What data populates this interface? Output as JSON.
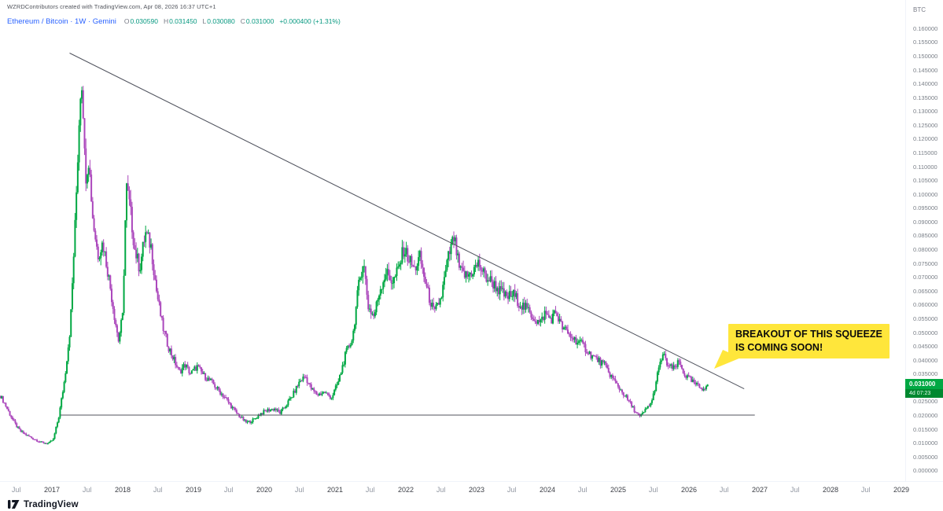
{
  "attribution": "WZRDContributors created with TradingView.com, Apr 08, 2026 16:37 UTC+1",
  "symbol": {
    "title": "Ethereum / Bitcoin · 1W · Gemini",
    "ohlc": [
      {
        "label": "O",
        "value": "0.030590"
      },
      {
        "label": "H",
        "value": "0.031450"
      },
      {
        "label": "L",
        "value": "0.030080"
      },
      {
        "label": "C",
        "value": "0.031000"
      }
    ],
    "change": "+0.000400 (+1.31%)"
  },
  "price_axis": {
    "currency": "BTC",
    "min": -0.005,
    "max": 0.16,
    "step": 0.005,
    "decimals": 6
  },
  "time_axis": {
    "year_start": 2017,
    "year_end": 2029,
    "mid_label": "Jul"
  },
  "price_label": {
    "price": "0.031000",
    "countdown": "4d 07:23"
  },
  "annotation": {
    "line1": "BREAKOUT OF THIS SQUEEZE",
    "line2": "IS COMING SOON!",
    "color": "#ffe63b"
  },
  "footer": {
    "brand": "TradingView"
  },
  "chart_data": {
    "type": "candlestick",
    "title": "Ethereum / Bitcoin (ETH/BTC) weekly candles on Gemini with descending resistance trendline, horizontal support near 0.020, squeeze annotation",
    "x_range": {
      "left": 2016.2667,
      "right": 2029.0444
    },
    "y_range": {
      "top": 0.1702,
      "bottom": -0.0039
    },
    "up_color": "#00a843",
    "down_color": "#ab47bc",
    "countdown_bg": "#00882f",
    "axis_note": "x is decimal year, y is price in BTC",
    "volatility": 0.07,
    "week_step": 0.019179,
    "data_start": 2016.272,
    "data_end": 2026.27,
    "last_close": 0.031,
    "price_path": [
      [
        2016.272,
        0.027
      ],
      [
        2016.33,
        0.0243
      ],
      [
        2016.4,
        0.0206
      ],
      [
        2016.47,
        0.0172
      ],
      [
        2016.55,
        0.0142
      ],
      [
        2016.65,
        0.0126
      ],
      [
        2016.75,
        0.0113
      ],
      [
        2016.85,
        0.0101
      ],
      [
        2016.95,
        0.0097
      ],
      [
        2017.02,
        0.0112
      ],
      [
        2017.1,
        0.0198
      ],
      [
        2017.18,
        0.033
      ],
      [
        2017.26,
        0.052
      ],
      [
        2017.33,
        0.09
      ],
      [
        2017.4,
        0.137
      ],
      [
        2017.43,
        0.142
      ],
      [
        2017.47,
        0.106
      ],
      [
        2017.52,
        0.113
      ],
      [
        2017.58,
        0.0905
      ],
      [
        2017.65,
        0.078
      ],
      [
        2017.72,
        0.0825
      ],
      [
        2017.8,
        0.0705
      ],
      [
        2017.88,
        0.0565
      ],
      [
        2017.94,
        0.047
      ],
      [
        2018.0,
        0.056
      ],
      [
        2018.05,
        0.103
      ],
      [
        2018.1,
        0.0955
      ],
      [
        2018.17,
        0.08
      ],
      [
        2018.24,
        0.073
      ],
      [
        2018.32,
        0.086
      ],
      [
        2018.4,
        0.0812
      ],
      [
        2018.48,
        0.0645
      ],
      [
        2018.56,
        0.0525
      ],
      [
        2018.64,
        0.0452
      ],
      [
        2018.72,
        0.0402
      ],
      [
        2018.8,
        0.0356
      ],
      [
        2018.88,
        0.0382
      ],
      [
        2018.96,
        0.035
      ],
      [
        2019.05,
        0.0376
      ],
      [
        2019.15,
        0.0342
      ],
      [
        2019.25,
        0.0321
      ],
      [
        2019.35,
        0.0291
      ],
      [
        2019.45,
        0.0262
      ],
      [
        2019.55,
        0.0226
      ],
      [
        2019.65,
        0.0196
      ],
      [
        2019.75,
        0.0172
      ],
      [
        2019.85,
        0.0183
      ],
      [
        2019.95,
        0.0206
      ],
      [
        2020.05,
        0.0218
      ],
      [
        2020.15,
        0.0223
      ],
      [
        2020.22,
        0.0206
      ],
      [
        2020.3,
        0.0233
      ],
      [
        2020.4,
        0.0271
      ],
      [
        2020.5,
        0.0322
      ],
      [
        2020.58,
        0.0341
      ],
      [
        2020.66,
        0.0296
      ],
      [
        2020.75,
        0.0273
      ],
      [
        2020.85,
        0.0283
      ],
      [
        2020.95,
        0.0263
      ],
      [
        2021.05,
        0.0322
      ],
      [
        2021.15,
        0.0421
      ],
      [
        2021.25,
        0.0482
      ],
      [
        2021.33,
        0.0662
      ],
      [
        2021.4,
        0.0762
      ],
      [
        2021.47,
        0.0592
      ],
      [
        2021.55,
        0.0556
      ],
      [
        2021.63,
        0.0652
      ],
      [
        2021.72,
        0.0716
      ],
      [
        2021.82,
        0.0682
      ],
      [
        2021.9,
        0.0731
      ],
      [
        2021.97,
        0.0802
      ],
      [
        2022.05,
        0.0762
      ],
      [
        2022.12,
        0.0726
      ],
      [
        2022.2,
        0.0771
      ],
      [
        2022.3,
        0.0652
      ],
      [
        2022.4,
        0.0566
      ],
      [
        2022.5,
        0.0626
      ],
      [
        2022.6,
        0.0771
      ],
      [
        2022.68,
        0.0842
      ],
      [
        2022.76,
        0.0722
      ],
      [
        2022.86,
        0.0701
      ],
      [
        2022.95,
        0.0723
      ],
      [
        2023.03,
        0.0749
      ],
      [
        2023.12,
        0.0701
      ],
      [
        2023.22,
        0.0681
      ],
      [
        2023.32,
        0.0651
      ],
      [
        2023.42,
        0.0626
      ],
      [
        2023.52,
        0.0636
      ],
      [
        2023.62,
        0.0601
      ],
      [
        2023.72,
        0.0581
      ],
      [
        2023.82,
        0.0549
      ],
      [
        2023.9,
        0.0531
      ],
      [
        2023.96,
        0.0569
      ],
      [
        2024.05,
        0.0546
      ],
      [
        2024.12,
        0.0573
      ],
      [
        2024.2,
        0.0521
      ],
      [
        2024.3,
        0.0491
      ],
      [
        2024.4,
        0.0471
      ],
      [
        2024.5,
        0.0453
      ],
      [
        2024.6,
        0.0421
      ],
      [
        2024.7,
        0.0401
      ],
      [
        2024.8,
        0.0383
      ],
      [
        2024.9,
        0.0341
      ],
      [
        2025.0,
        0.0303
      ],
      [
        2025.1,
        0.0269
      ],
      [
        2025.2,
        0.0229
      ],
      [
        2025.3,
        0.0191
      ],
      [
        2025.38,
        0.0216
      ],
      [
        2025.48,
        0.0251
      ],
      [
        2025.56,
        0.0352
      ],
      [
        2025.63,
        0.0421
      ],
      [
        2025.7,
        0.0381
      ],
      [
        2025.78,
        0.0366
      ],
      [
        2025.86,
        0.0391
      ],
      [
        2025.94,
        0.0346
      ],
      [
        2026.02,
        0.0326
      ],
      [
        2026.1,
        0.0309
      ],
      [
        2026.18,
        0.0296
      ],
      [
        2026.27,
        0.031
      ]
    ],
    "lines": [
      {
        "name": "descending-resistance",
        "x1": 2017.25,
        "p1": 0.151,
        "x2": 2026.78,
        "p2": 0.0295,
        "color": "#50535e",
        "width": 1
      },
      {
        "name": "horizontal-support",
        "x1": 2017.12,
        "p1": 0.02,
        "x2": 2026.93,
        "p2": 0.02,
        "color": "#50535e",
        "width": 1
      }
    ]
  }
}
